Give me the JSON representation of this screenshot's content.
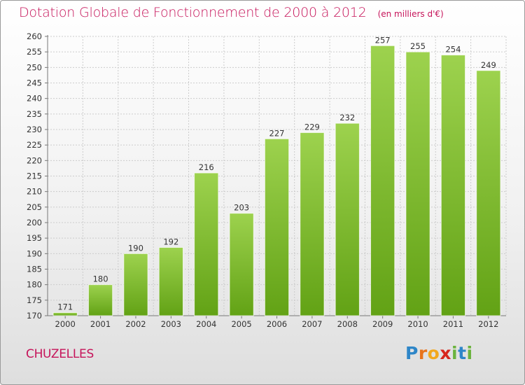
{
  "title": "Dotation Globale de Fonctionnement de 2000 à 2012",
  "subtitle": "(en milliers d'€)",
  "commune": "CHUZELLES",
  "logo": {
    "letters": [
      "P",
      "r",
      "o",
      "x",
      "i",
      "t",
      "i"
    ],
    "colors": [
      "#2e86c8",
      "#e8741c",
      "#f2a81d",
      "#d7261c",
      "#6bb33d",
      "#2e86c8",
      "#6bb33d"
    ]
  },
  "colors": {
    "accent": "#c6145a",
    "bar_top": "#9dd24e",
    "bar_bottom": "#62a215",
    "grid": "#cccccc"
  },
  "chart_data": {
    "type": "bar",
    "categories": [
      "2000",
      "2001",
      "2002",
      "2003",
      "2004",
      "2005",
      "2006",
      "2007",
      "2008",
      "2009",
      "2010",
      "2011",
      "2012"
    ],
    "values": [
      171,
      180,
      190,
      192,
      216,
      203,
      227,
      229,
      232,
      257,
      255,
      254,
      249
    ],
    "ylim": [
      170,
      260
    ],
    "ytick_step": 5,
    "grid": true,
    "xlabel": "",
    "ylabel": ""
  }
}
